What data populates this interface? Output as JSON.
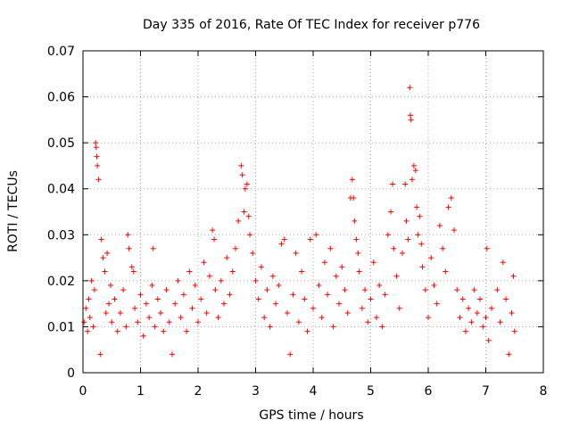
{
  "chart_data": {
    "type": "scatter",
    "title": "Day 335 of 2016, Rate Of TEC Index for receiver p776",
    "xlabel": "GPS time / hours",
    "ylabel": "ROTI / TECUs",
    "xlim": [
      0,
      8
    ],
    "ylim": [
      0,
      0.07
    ],
    "x_ticks": [
      "0",
      "1",
      "2",
      "3",
      "4",
      "5",
      "6",
      "7",
      "8"
    ],
    "y_ticks": [
      "0",
      "0.01",
      "0.02",
      "0.03",
      "0.04",
      "0.05",
      "0.06",
      "0.07"
    ],
    "grid": true,
    "marker": "+",
    "color": "#ff0000",
    "series": [
      {
        "name": "ROTI",
        "points": [
          [
            0.02,
            0.011
          ],
          [
            0.05,
            0.014
          ],
          [
            0.08,
            0.009
          ],
          [
            0.1,
            0.016
          ],
          [
            0.12,
            0.012
          ],
          [
            0.15,
            0.02
          ],
          [
            0.18,
            0.01
          ],
          [
            0.2,
            0.018
          ],
          [
            0.22,
            0.05
          ],
          [
            0.23,
            0.049
          ],
          [
            0.24,
            0.047
          ],
          [
            0.25,
            0.045
          ],
          [
            0.27,
            0.042
          ],
          [
            0.3,
            0.004
          ],
          [
            0.32,
            0.029
          ],
          [
            0.35,
            0.025
          ],
          [
            0.38,
            0.022
          ],
          [
            0.4,
            0.013
          ],
          [
            0.42,
            0.026
          ],
          [
            0.45,
            0.015
          ],
          [
            0.48,
            0.019
          ],
          [
            0.5,
            0.011
          ],
          [
            0.55,
            0.016
          ],
          [
            0.6,
            0.009
          ],
          [
            0.65,
            0.013
          ],
          [
            0.7,
            0.018
          ],
          [
            0.75,
            0.01
          ],
          [
            0.78,
            0.03
          ],
          [
            0.8,
            0.027
          ],
          [
            0.85,
            0.023
          ],
          [
            0.88,
            0.022
          ],
          [
            0.9,
            0.014
          ],
          [
            0.95,
            0.011
          ],
          [
            1.0,
            0.017
          ],
          [
            1.05,
            0.008
          ],
          [
            1.1,
            0.015
          ],
          [
            1.15,
            0.012
          ],
          [
            1.2,
            0.019
          ],
          [
            1.22,
            0.027
          ],
          [
            1.25,
            0.01
          ],
          [
            1.3,
            0.016
          ],
          [
            1.35,
            0.013
          ],
          [
            1.4,
            0.009
          ],
          [
            1.45,
            0.018
          ],
          [
            1.5,
            0.011
          ],
          [
            1.55,
            0.004
          ],
          [
            1.6,
            0.015
          ],
          [
            1.65,
            0.02
          ],
          [
            1.7,
            0.012
          ],
          [
            1.75,
            0.017
          ],
          [
            1.8,
            0.009
          ],
          [
            1.85,
            0.022
          ],
          [
            1.9,
            0.014
          ],
          [
            1.95,
            0.019
          ],
          [
            2.0,
            0.011
          ],
          [
            2.05,
            0.016
          ],
          [
            2.1,
            0.024
          ],
          [
            2.15,
            0.013
          ],
          [
            2.2,
            0.021
          ],
          [
            2.25,
            0.031
          ],
          [
            2.28,
            0.029
          ],
          [
            2.3,
            0.018
          ],
          [
            2.35,
            0.012
          ],
          [
            2.4,
            0.02
          ],
          [
            2.45,
            0.015
          ],
          [
            2.5,
            0.025
          ],
          [
            2.55,
            0.017
          ],
          [
            2.6,
            0.022
          ],
          [
            2.65,
            0.027
          ],
          [
            2.7,
            0.033
          ],
          [
            2.75,
            0.045
          ],
          [
            2.77,
            0.043
          ],
          [
            2.8,
            0.035
          ],
          [
            2.82,
            0.04
          ],
          [
            2.85,
            0.041
          ],
          [
            2.88,
            0.034
          ],
          [
            2.9,
            0.03
          ],
          [
            2.95,
            0.026
          ],
          [
            3.0,
            0.02
          ],
          [
            3.05,
            0.016
          ],
          [
            3.1,
            0.023
          ],
          [
            3.15,
            0.012
          ],
          [
            3.2,
            0.018
          ],
          [
            3.25,
            0.01
          ],
          [
            3.3,
            0.021
          ],
          [
            3.35,
            0.015
          ],
          [
            3.4,
            0.019
          ],
          [
            3.45,
            0.028
          ],
          [
            3.5,
            0.029
          ],
          [
            3.55,
            0.013
          ],
          [
            3.6,
            0.004
          ],
          [
            3.65,
            0.017
          ],
          [
            3.7,
            0.026
          ],
          [
            3.75,
            0.011
          ],
          [
            3.8,
            0.022
          ],
          [
            3.85,
            0.016
          ],
          [
            3.9,
            0.009
          ],
          [
            3.95,
            0.029
          ],
          [
            4.0,
            0.014
          ],
          [
            4.05,
            0.03
          ],
          [
            4.1,
            0.019
          ],
          [
            4.15,
            0.012
          ],
          [
            4.2,
            0.024
          ],
          [
            4.25,
            0.017
          ],
          [
            4.3,
            0.027
          ],
          [
            4.35,
            0.01
          ],
          [
            4.4,
            0.021
          ],
          [
            4.45,
            0.015
          ],
          [
            4.5,
            0.023
          ],
          [
            4.55,
            0.018
          ],
          [
            4.6,
            0.013
          ],
          [
            4.65,
            0.038
          ],
          [
            4.68,
            0.042
          ],
          [
            4.7,
            0.038
          ],
          [
            4.72,
            0.033
          ],
          [
            4.75,
            0.029
          ],
          [
            4.78,
            0.026
          ],
          [
            4.8,
            0.022
          ],
          [
            4.85,
            0.014
          ],
          [
            4.9,
            0.018
          ],
          [
            4.95,
            0.011
          ],
          [
            5.0,
            0.016
          ],
          [
            5.05,
            0.024
          ],
          [
            5.1,
            0.012
          ],
          [
            5.15,
            0.019
          ],
          [
            5.2,
            0.01
          ],
          [
            5.25,
            0.017
          ],
          [
            5.3,
            0.03
          ],
          [
            5.35,
            0.035
          ],
          [
            5.38,
            0.041
          ],
          [
            5.4,
            0.027
          ],
          [
            5.45,
            0.021
          ],
          [
            5.5,
            0.014
          ],
          [
            5.55,
            0.026
          ],
          [
            5.6,
            0.041
          ],
          [
            5.62,
            0.033
          ],
          [
            5.65,
            0.029
          ],
          [
            5.68,
            0.062
          ],
          [
            5.69,
            0.056
          ],
          [
            5.7,
            0.055
          ],
          [
            5.72,
            0.042
          ],
          [
            5.75,
            0.045
          ],
          [
            5.78,
            0.044
          ],
          [
            5.8,
            0.036
          ],
          [
            5.82,
            0.03
          ],
          [
            5.85,
            0.034
          ],
          [
            5.88,
            0.028
          ],
          [
            5.9,
            0.023
          ],
          [
            5.95,
            0.018
          ],
          [
            6.0,
            0.012
          ],
          [
            6.05,
            0.025
          ],
          [
            6.1,
            0.019
          ],
          [
            6.15,
            0.015
          ],
          [
            6.2,
            0.032
          ],
          [
            6.25,
            0.027
          ],
          [
            6.3,
            0.022
          ],
          [
            6.35,
            0.036
          ],
          [
            6.4,
            0.038
          ],
          [
            6.45,
            0.031
          ],
          [
            6.5,
            0.018
          ],
          [
            6.55,
            0.012
          ],
          [
            6.6,
            0.016
          ],
          [
            6.65,
            0.009
          ],
          [
            6.7,
            0.014
          ],
          [
            6.75,
            0.011
          ],
          [
            6.8,
            0.018
          ],
          [
            6.85,
            0.013
          ],
          [
            6.9,
            0.016
          ],
          [
            6.95,
            0.01
          ],
          [
            7.0,
            0.012
          ],
          [
            7.02,
            0.027
          ],
          [
            7.05,
            0.007
          ],
          [
            7.1,
            0.014
          ],
          [
            7.2,
            0.018
          ],
          [
            7.25,
            0.011
          ],
          [
            7.3,
            0.024
          ],
          [
            7.35,
            0.016
          ],
          [
            7.4,
            0.004
          ],
          [
            7.45,
            0.013
          ],
          [
            7.48,
            0.021
          ],
          [
            7.5,
            0.009
          ]
        ]
      }
    ]
  }
}
